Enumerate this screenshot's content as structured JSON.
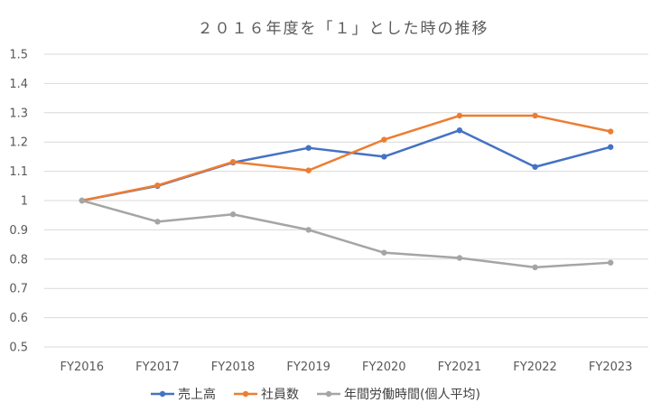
{
  "chart_data": {
    "type": "line",
    "title": "２０１６年度を「１」とした時の推移",
    "xlabel": "",
    "ylabel": "",
    "categories": [
      "FY2016",
      "FY2017",
      "FY2018",
      "FY2019",
      "FY2020",
      "FY2021",
      "FY2022",
      "FY2023"
    ],
    "ylim": [
      0.5,
      1.5
    ],
    "yticks": [
      "0.5",
      "0.6",
      "0.7",
      "0.8",
      "0.9",
      "1",
      "1.1",
      "1.2",
      "1.3",
      "1.4",
      "1.5"
    ],
    "grid": true,
    "legend_position": "bottom",
    "series": [
      {
        "name": "売上高",
        "color": "#4472c4",
        "values": [
          1.0,
          1.05,
          1.13,
          1.18,
          1.15,
          1.24,
          1.115,
          1.183
        ]
      },
      {
        "name": "社員数",
        "color": "#ed7d31",
        "values": [
          1.0,
          1.052,
          1.132,
          1.103,
          1.208,
          1.29,
          1.29,
          1.236
        ]
      },
      {
        "name": "年間労働時間(個人平均)",
        "color": "#a5a5a5",
        "values": [
          1.0,
          0.928,
          0.953,
          0.9,
          0.822,
          0.804,
          0.772,
          0.788
        ]
      }
    ]
  }
}
